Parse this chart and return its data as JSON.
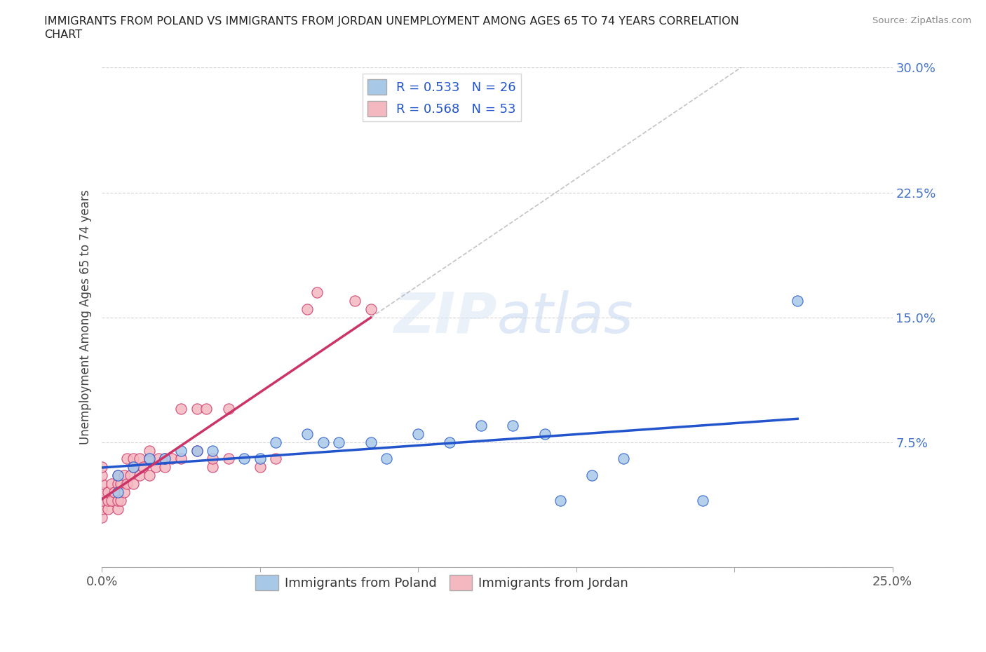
{
  "title_line1": "IMMIGRANTS FROM POLAND VS IMMIGRANTS FROM JORDAN UNEMPLOYMENT AMONG AGES 65 TO 74 YEARS CORRELATION",
  "title_line2": "CHART",
  "source": "Source: ZipAtlas.com",
  "ylabel": "Unemployment Among Ages 65 to 74 years",
  "xlim": [
    0.0,
    0.25
  ],
  "ylim": [
    0.0,
    0.3
  ],
  "xticks": [
    0.0,
    0.05,
    0.1,
    0.15,
    0.2,
    0.25
  ],
  "xtick_labels": [
    "0.0%",
    "",
    "",
    "",
    "",
    "25.0%"
  ],
  "yticks": [
    0.0,
    0.075,
    0.15,
    0.225,
    0.3
  ],
  "ytick_labels": [
    "",
    "7.5%",
    "15.0%",
    "22.5%",
    "30.0%"
  ],
  "poland_color": "#a8c8e8",
  "jordan_color": "#f4b8c0",
  "poland_line_color": "#2255cc",
  "jordan_line_color": "#cc3366",
  "poland_R": 0.533,
  "poland_N": 26,
  "jordan_R": 0.568,
  "jordan_N": 53,
  "poland_scatter": [
    [
      0.005,
      0.055
    ],
    [
      0.005,
      0.045
    ],
    [
      0.01,
      0.06
    ],
    [
      0.015,
      0.065
    ],
    [
      0.02,
      0.065
    ],
    [
      0.025,
      0.07
    ],
    [
      0.03,
      0.07
    ],
    [
      0.035,
      0.07
    ],
    [
      0.045,
      0.065
    ],
    [
      0.05,
      0.065
    ],
    [
      0.055,
      0.075
    ],
    [
      0.065,
      0.08
    ],
    [
      0.07,
      0.075
    ],
    [
      0.075,
      0.075
    ],
    [
      0.085,
      0.075
    ],
    [
      0.09,
      0.065
    ],
    [
      0.1,
      0.08
    ],
    [
      0.11,
      0.075
    ],
    [
      0.12,
      0.085
    ],
    [
      0.13,
      0.085
    ],
    [
      0.14,
      0.08
    ],
    [
      0.145,
      0.04
    ],
    [
      0.155,
      0.055
    ],
    [
      0.165,
      0.065
    ],
    [
      0.19,
      0.04
    ],
    [
      0.22,
      0.16
    ]
  ],
  "jordan_scatter": [
    [
      0.0,
      0.03
    ],
    [
      0.0,
      0.035
    ],
    [
      0.0,
      0.04
    ],
    [
      0.0,
      0.045
    ],
    [
      0.0,
      0.05
    ],
    [
      0.0,
      0.055
    ],
    [
      0.0,
      0.06
    ],
    [
      0.002,
      0.035
    ],
    [
      0.002,
      0.04
    ],
    [
      0.002,
      0.045
    ],
    [
      0.003,
      0.04
    ],
    [
      0.003,
      0.05
    ],
    [
      0.004,
      0.045
    ],
    [
      0.005,
      0.035
    ],
    [
      0.005,
      0.04
    ],
    [
      0.005,
      0.05
    ],
    [
      0.005,
      0.055
    ],
    [
      0.006,
      0.04
    ],
    [
      0.006,
      0.05
    ],
    [
      0.007,
      0.045
    ],
    [
      0.007,
      0.055
    ],
    [
      0.008,
      0.05
    ],
    [
      0.008,
      0.065
    ],
    [
      0.009,
      0.055
    ],
    [
      0.01,
      0.05
    ],
    [
      0.01,
      0.06
    ],
    [
      0.01,
      0.065
    ],
    [
      0.012,
      0.055
    ],
    [
      0.012,
      0.065
    ],
    [
      0.013,
      0.06
    ],
    [
      0.015,
      0.055
    ],
    [
      0.015,
      0.065
    ],
    [
      0.015,
      0.07
    ],
    [
      0.017,
      0.06
    ],
    [
      0.018,
      0.065
    ],
    [
      0.02,
      0.06
    ],
    [
      0.02,
      0.065
    ],
    [
      0.022,
      0.065
    ],
    [
      0.025,
      0.065
    ],
    [
      0.025,
      0.095
    ],
    [
      0.03,
      0.07
    ],
    [
      0.03,
      0.095
    ],
    [
      0.033,
      0.095
    ],
    [
      0.035,
      0.06
    ],
    [
      0.035,
      0.065
    ],
    [
      0.04,
      0.065
    ],
    [
      0.04,
      0.095
    ],
    [
      0.05,
      0.06
    ],
    [
      0.055,
      0.065
    ],
    [
      0.065,
      0.155
    ],
    [
      0.068,
      0.165
    ],
    [
      0.08,
      0.16
    ],
    [
      0.085,
      0.155
    ]
  ]
}
